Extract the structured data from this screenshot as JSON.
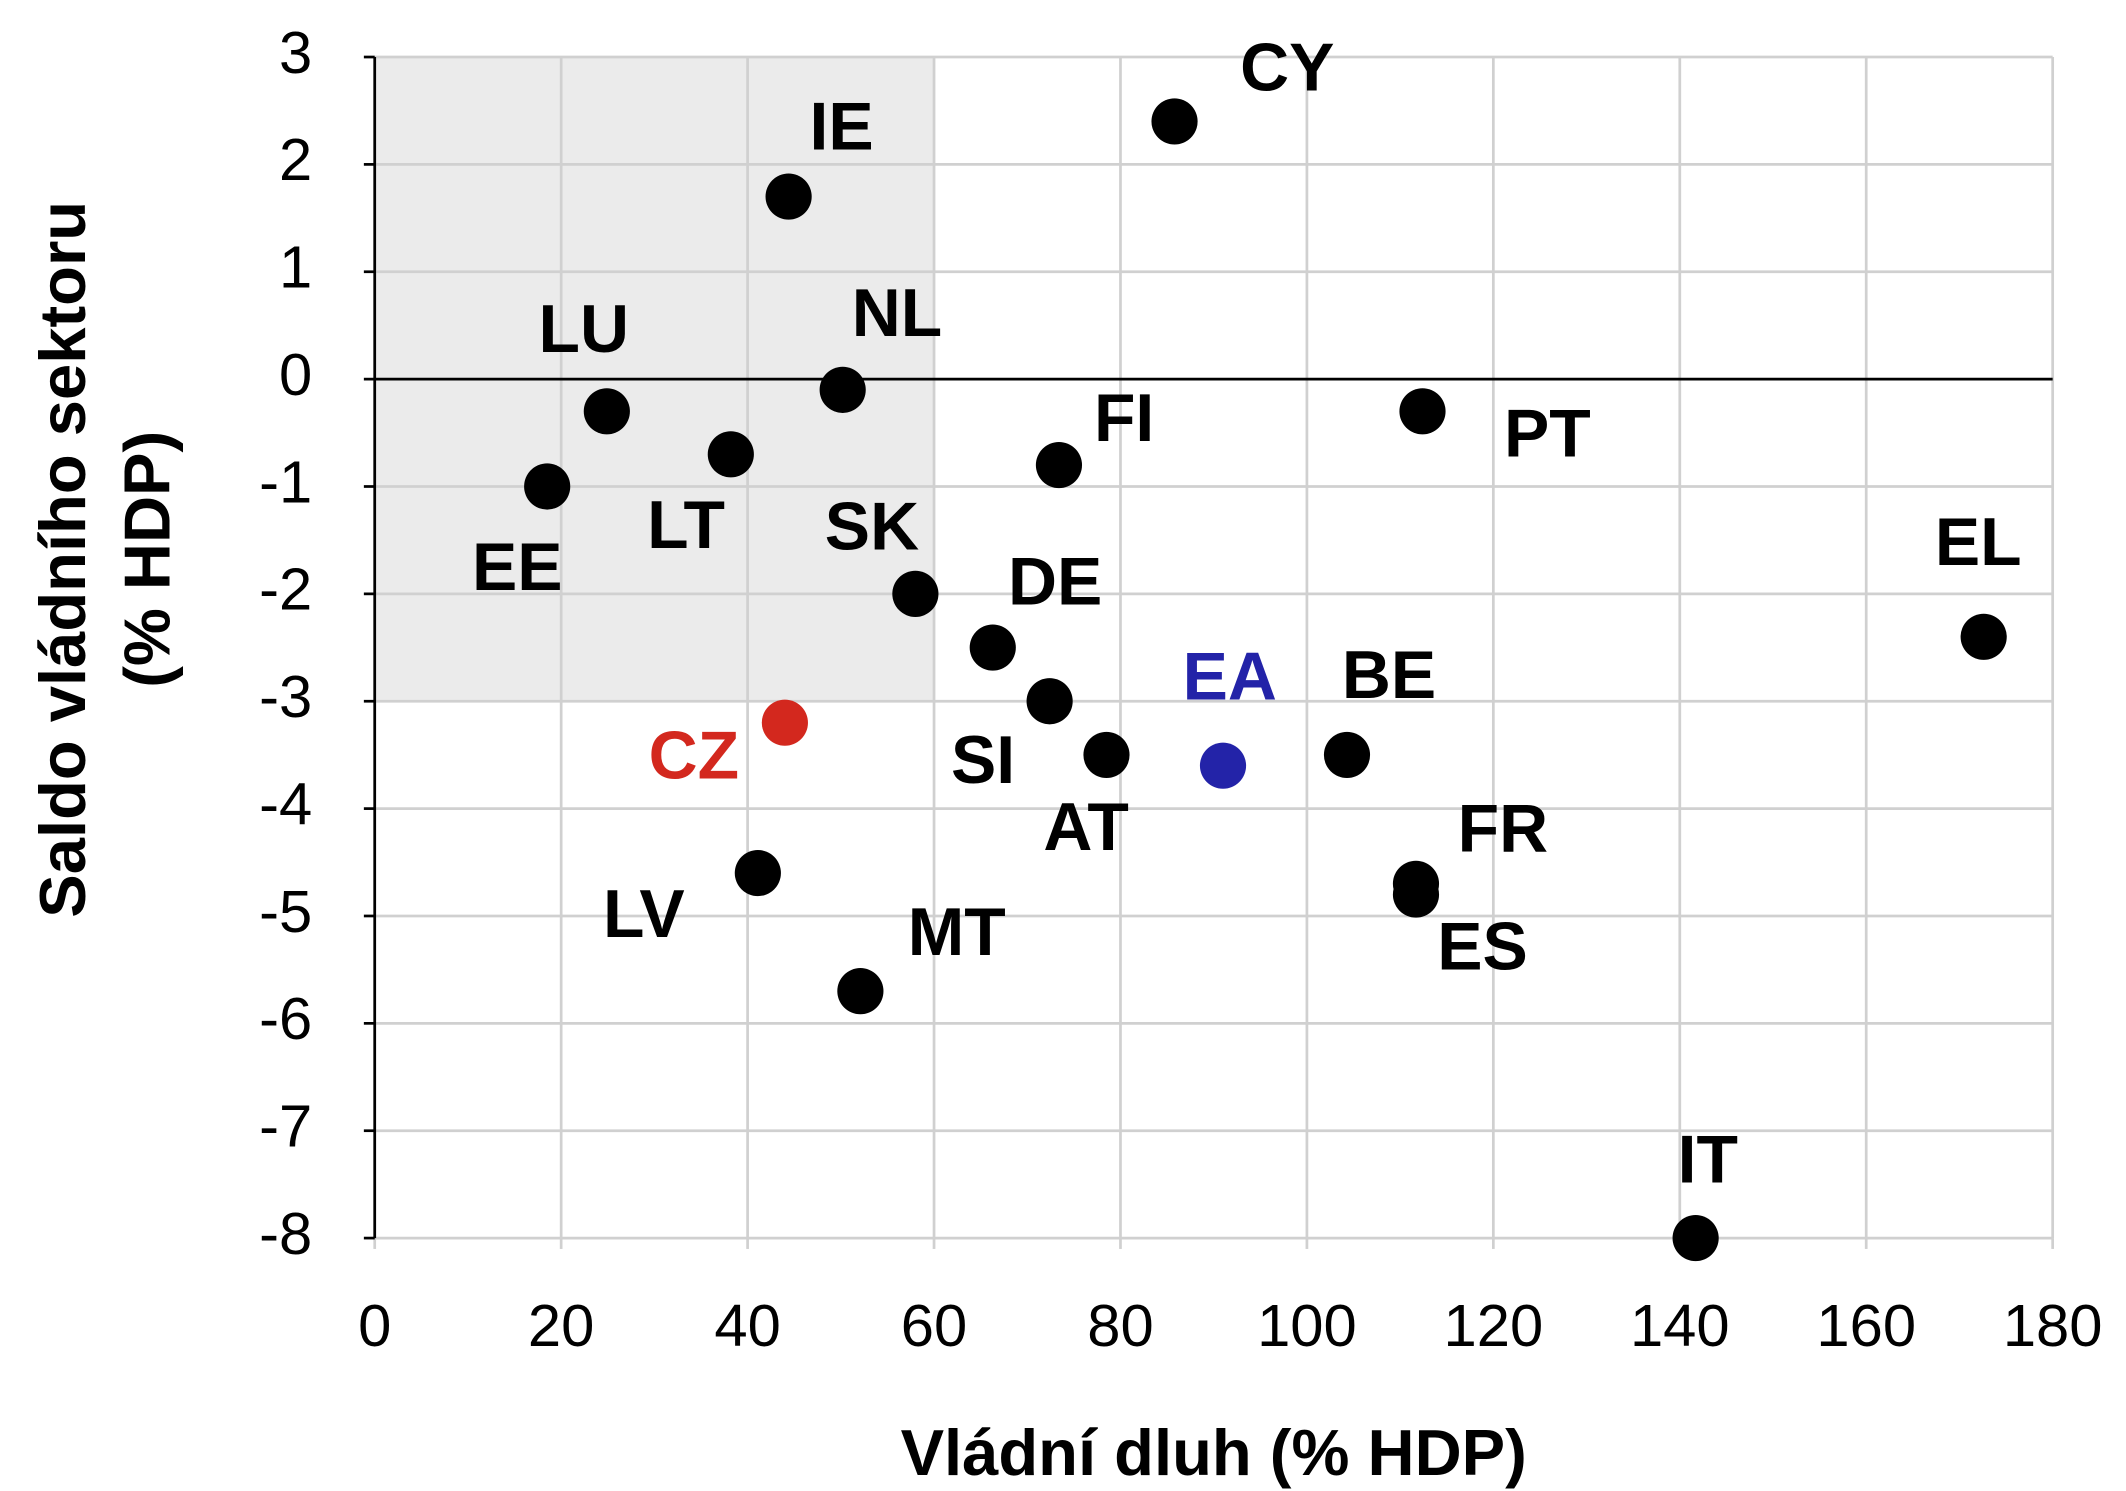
{
  "chart_data": {
    "type": "scatter",
    "x_label": "Vládní dluh (% HDP)",
    "y_label": [
      "Saldo vládního sektoru",
      "(% HDP)"
    ],
    "point_labels": [
      "CY",
      "IE",
      "LU",
      "NL",
      "EE",
      "LT",
      "FI",
      "PT",
      "SK",
      "DE",
      "SI",
      "AT",
      "EA",
      "BE",
      "CZ",
      "LV",
      "MT",
      "FR",
      "ES",
      "IT",
      "EL"
    ],
    "x": [
      85.8,
      44.4,
      24.9,
      50.2,
      18.5,
      38.2,
      73.4,
      112.4,
      58.0,
      66.3,
      72.4,
      78.5,
      91.0,
      104.3,
      44.0,
      41.1,
      52.1,
      111.7,
      111.7,
      141.7,
      172.6
    ],
    "values": [
      2.4,
      1.7,
      -0.3,
      -0.1,
      -1.0,
      -0.7,
      -0.8,
      -0.3,
      -2.0,
      -2.5,
      -3.0,
      -3.5,
      -3.6,
      -3.5,
      -3.2,
      -4.6,
      -5.7,
      -4.7,
      -4.8,
      -8.0,
      -2.4
    ],
    "colors": [
      "#000000",
      "#000000",
      "#000000",
      "#000000",
      "#000000",
      "#000000",
      "#000000",
      "#000000",
      "#000000",
      "#000000",
      "#000000",
      "#000000",
      "#2323a8",
      "#000000",
      "#d3281e",
      "#000000",
      "#000000",
      "#000000",
      "#000000",
      "#000000",
      "#000000"
    ],
    "xlim": [
      0,
      180
    ],
    "xticks": [
      0,
      20,
      40,
      60,
      80,
      100,
      120,
      140,
      160,
      180
    ],
    "ylim": [
      -8,
      3
    ],
    "yticks": [
      -8,
      -7,
      -6,
      -5,
      -4,
      -3,
      -2,
      -1,
      0,
      1,
      2,
      3
    ],
    "grid": true,
    "shaded_region": {
      "x": [
        0,
        60
      ],
      "y": [
        -3,
        3
      ],
      "color": "#ebebeb"
    }
  }
}
